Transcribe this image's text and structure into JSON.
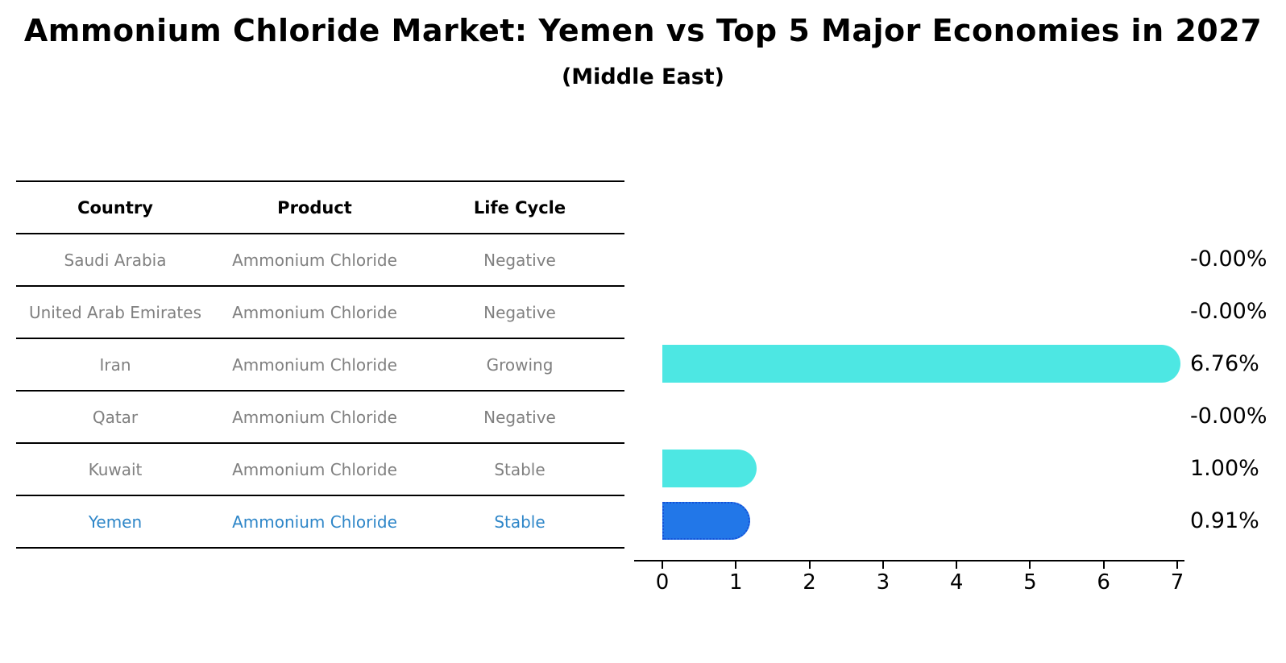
{
  "title": "Ammonium Chloride Market: Yemen vs Top 5 Major Economies in 2027",
  "subtitle": "(Middle East)",
  "table": {
    "headers": [
      "Country",
      "Product",
      "Life Cycle"
    ],
    "rows": [
      {
        "country": "Saudi Arabia",
        "product": "Ammonium Chloride",
        "life_cycle": "Negative",
        "highlight": false
      },
      {
        "country": "United Arab Emirates",
        "product": "Ammonium Chloride",
        "life_cycle": "Negative",
        "highlight": false
      },
      {
        "country": "Iran",
        "product": "Ammonium Chloride",
        "life_cycle": "Growing",
        "highlight": false
      },
      {
        "country": "Qatar",
        "product": "Ammonium Chloride",
        "life_cycle": "Negative",
        "highlight": false
      },
      {
        "country": "Kuwait",
        "product": "Ammonium Chloride",
        "life_cycle": "Stable",
        "highlight": false
      },
      {
        "country": "Yemen",
        "product": "Ammonium Chloride",
        "life_cycle": "Stable",
        "highlight": true
      }
    ]
  },
  "chart_data": {
    "type": "bar",
    "orientation": "horizontal",
    "title": "Ammonium Chloride Market: Yemen vs Top 5 Major Economies in 2027",
    "subtitle": "(Middle East)",
    "categories": [
      "Saudi Arabia",
      "United Arab Emirates",
      "Iran",
      "Qatar",
      "Kuwait",
      "Yemen"
    ],
    "values": [
      -0.0,
      -0.0,
      6.76,
      -0.0,
      1.0,
      0.91
    ],
    "value_labels": [
      "-0.00%",
      "-0.00%",
      "6.76%",
      "-0.00%",
      "1.00%",
      "0.91%"
    ],
    "xlabel": "",
    "ylabel": "",
    "xlim": [
      0,
      7
    ],
    "xticks": [
      "0",
      "1",
      "2",
      "3",
      "4",
      "5",
      "6",
      "7"
    ],
    "grid": false,
    "legend": false,
    "highlight_index": 5,
    "colors": {
      "bar_default": "#4DE7E3",
      "bar_highlight": "#2277E8",
      "bar_highlight_border": "#1550D8",
      "highlight_text": "#2E86C8",
      "muted_text": "#808080",
      "axis": "#000000"
    }
  }
}
